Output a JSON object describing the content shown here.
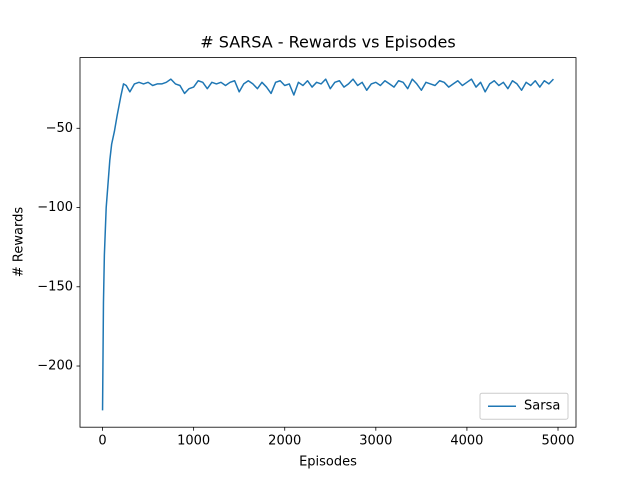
{
  "chart_data": {
    "type": "line",
    "title": "# SARSA - Rewards vs Episodes",
    "x_label": "Episodes",
    "y_label": "# Rewards",
    "x": [
      0,
      10,
      20,
      40,
      60,
      80,
      100,
      130,
      160,
      200,
      230,
      260,
      300,
      350,
      400,
      450,
      500,
      550,
      600,
      650,
      700,
      750,
      800,
      850,
      900,
      950,
      1000,
      1050,
      1100,
      1150,
      1200,
      1250,
      1300,
      1350,
      1400,
      1450,
      1500,
      1550,
      1600,
      1650,
      1700,
      1750,
      1800,
      1850,
      1900,
      1950,
      2000,
      2050,
      2100,
      2150,
      2200,
      2250,
      2300,
      2350,
      2400,
      2450,
      2500,
      2550,
      2600,
      2650,
      2700,
      2750,
      2800,
      2850,
      2900,
      2950,
      3000,
      3050,
      3100,
      3150,
      3200,
      3250,
      3300,
      3350,
      3400,
      3450,
      3500,
      3550,
      3600,
      3650,
      3700,
      3750,
      3800,
      3850,
      3900,
      3950,
      4000,
      4050,
      4100,
      4150,
      4200,
      4250,
      4300,
      4350,
      4400,
      4450,
      4500,
      4550,
      4600,
      4650,
      4700,
      4750,
      4800,
      4850,
      4900,
      4950
    ],
    "series": [
      {
        "name": "Sarsa",
        "color": "#1f77b4",
        "values": [
          -228,
          -160,
          -130,
          -100,
          -85,
          -70,
          -60,
          -52,
          -42,
          -30,
          -22,
          -23,
          -27,
          -22,
          -21,
          -22,
          -21,
          -23,
          -22,
          -22,
          -21,
          -19,
          -22,
          -23,
          -28,
          -25,
          -24,
          -20,
          -21,
          -25,
          -21,
          -22,
          -21,
          -23,
          -21,
          -20,
          -27,
          -22,
          -20,
          -22,
          -25,
          -21,
          -24,
          -28,
          -21,
          -20,
          -23,
          -22,
          -29,
          -21,
          -23,
          -20,
          -24,
          -21,
          -22,
          -19,
          -25,
          -21,
          -20,
          -24,
          -22,
          -19,
          -23,
          -21,
          -26,
          -22,
          -21,
          -23,
          -20,
          -22,
          -24,
          -20,
          -21,
          -25,
          -19,
          -22,
          -26,
          -21,
          -22,
          -23,
          -20,
          -21,
          -24,
          -22,
          -20,
          -23,
          -21,
          -19,
          -24,
          -21,
          -27,
          -22,
          -20,
          -23,
          -21,
          -25,
          -20,
          -22,
          -26,
          -21,
          -23,
          -20,
          -24,
          -20,
          -22,
          -19
        ]
      }
    ],
    "xlim": [
      -247.5,
      5197.5
    ],
    "ylim": [
      -238.6,
      -5.4
    ],
    "xticks": [
      0,
      1000,
      2000,
      3000,
      4000,
      5000
    ],
    "yticks": [
      {
        "value": -200,
        "label": "−200"
      },
      {
        "value": -150,
        "label": "−150"
      },
      {
        "value": -100,
        "label": "−100"
      },
      {
        "value": -50,
        "label": "−50"
      }
    ],
    "legend": "lower right"
  }
}
